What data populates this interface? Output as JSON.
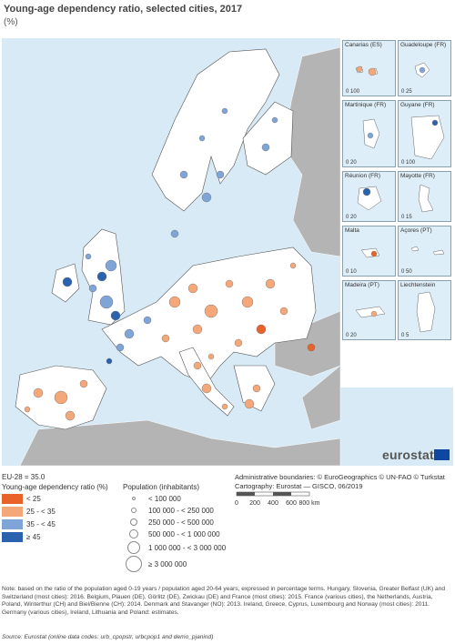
{
  "title": "Young-age dependency ratio, selected cities, 2017",
  "unit": "(%)",
  "colors": {
    "sea": "#d7eaf5",
    "land_eu": "#ffffff",
    "land_other": "#b4b4b4",
    "class_lt25": "#e8622a",
    "class_25_35": "#f4a87a",
    "class_35_45": "#7fa4d8",
    "class_ge45": "#2a62b0"
  },
  "legend": {
    "eu28": "EU-28 = 35.0",
    "ratio_title": "Young-age dependency ratio (%)",
    "ratio_classes": [
      {
        "label": "< 25",
        "color": "#e8622a"
      },
      {
        "label": "25 - < 35",
        "color": "#f4a87a"
      },
      {
        "label": "35 - < 45",
        "color": "#7fa4d8"
      },
      {
        "label": "≥ 45",
        "color": "#2a62b0"
      }
    ],
    "population_title": "Population (inhabitants)",
    "population_classes": [
      {
        "label": "< 100 000"
      },
      {
        "label": "100 000 - < 250 000"
      },
      {
        "label": "250 000 - < 500 000"
      },
      {
        "label": "500 000 - < 1 000 000"
      },
      {
        "label": "1 000 000 - < 3 000 000"
      },
      {
        "label": "≥ 3 000 000"
      }
    ]
  },
  "credits": {
    "boundaries": "Administrative boundaries: © EuroGeographics © UN-FAO © Turkstat",
    "cartography": "Cartography: Eurostat — GISCO, 06/2019"
  },
  "scalebar": {
    "ticks": [
      "0",
      "200",
      "400",
      "600",
      "800 km"
    ]
  },
  "insets": [
    {
      "name": "Canarias (ES)",
      "scale": [
        "0",
        "100"
      ]
    },
    {
      "name": "Guadeloupe (FR)",
      "scale": [
        "0",
        "25"
      ]
    },
    {
      "name": "Martinique (FR)",
      "scale": [
        "0",
        "20"
      ]
    },
    {
      "name": "Guyane (FR)",
      "scale": [
        "0",
        "100"
      ]
    },
    {
      "name": "Réunion (FR)",
      "scale": [
        "0",
        "20"
      ]
    },
    {
      "name": "Mayotte (FR)",
      "scale": [
        "0",
        "15"
      ]
    },
    {
      "name": "Malta",
      "scale": [
        "0",
        "10"
      ]
    },
    {
      "name": "Açores (PT)",
      "scale": [
        "0",
        "50"
      ]
    },
    {
      "name": "Madeira (PT)",
      "scale": [
        "0",
        "20"
      ]
    },
    {
      "name": "Liechtenstein",
      "scale": [
        "0",
        "5"
      ]
    }
  ],
  "brand": "eurostat",
  "note": "Note: based on the ratio of the population aged 0-19 years / population aged 20-64 years, expressed in percentage terms. Hungary, Slovenia, Greater Belfast (UK) and Switzerland (most cities): 2016. Belgium, Plauen (DE), Görlitz (DE), Zwickau (DE) and France (most cities): 2015. France (various cities), the Netherlands, Austria, Poland, Winterthur (CH) and Biel/Bienne (CH): 2014. Denmark and Stavanger (NO): 2013. Ireland, Greece, Cyprus, Luxembourg and Norway (most cities): 2011. Germany (various cities), Ireland, Lithuania and Poland: estimates.",
  "source": "Source: Eurostat (online data codes: urb_cpopstr, urbcpop1 and demo_pjanind)"
}
